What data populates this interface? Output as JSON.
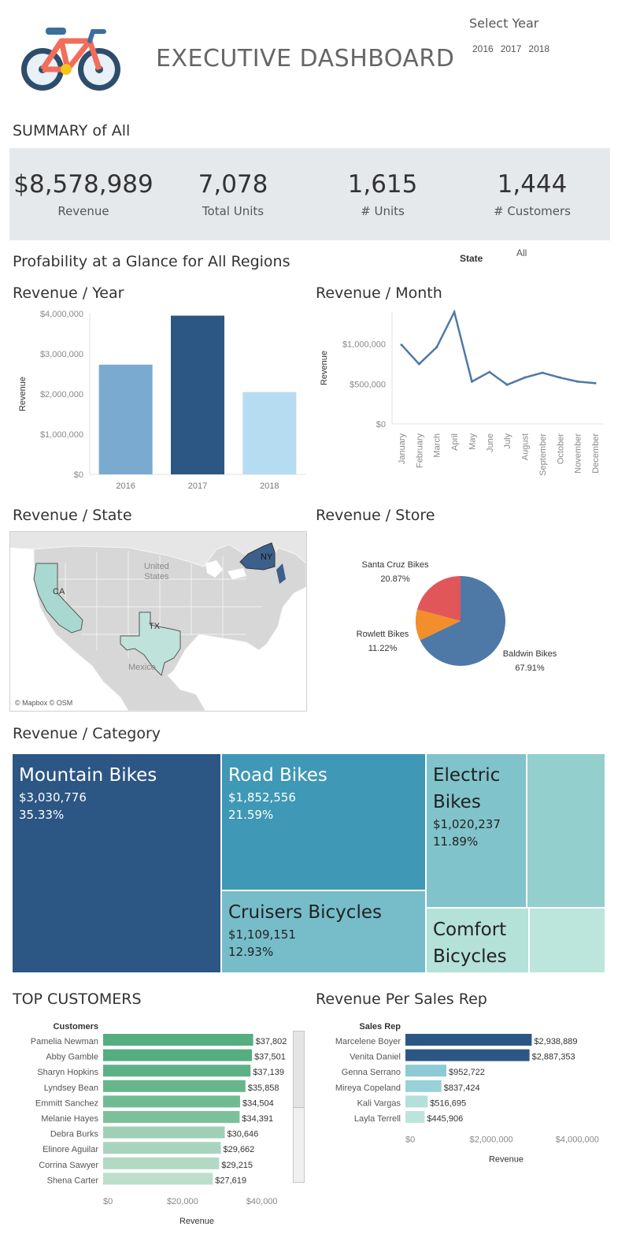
{
  "header": {
    "title": "EXECUTIVE DASHBOARD",
    "select_year_label": "Select Year",
    "years": [
      "2016",
      "2017",
      "2018"
    ]
  },
  "summary": {
    "title": "SUMMARY of All",
    "kpis": [
      {
        "value": "$8,578,989",
        "label": "Revenue"
      },
      {
        "value": "7,078",
        "label": "Total Units"
      },
      {
        "value": "1,615",
        "label": "# Units"
      },
      {
        "value": "1,444",
        "label": "# Customers"
      }
    ]
  },
  "profitability": {
    "title": "Profability at a Glance for All Regions",
    "state_label": "State",
    "state_value": "All"
  },
  "revenue_year": {
    "title": "Revenue / Year"
  },
  "revenue_month": {
    "title": "Revenue / Month"
  },
  "revenue_state": {
    "title": "Revenue / State",
    "map_labels": {
      "country_us": "United\nStates",
      "country_mx": "Mexico",
      "ca": "CA",
      "tx": "TX",
      "ny": "NY"
    },
    "attribution": "© Mapbox © OSM"
  },
  "revenue_store": {
    "title": "Revenue / Store"
  },
  "revenue_category": {
    "title": "Revenue / Category",
    "cells": [
      {
        "name": "Mountain Bikes",
        "value": "$3,030,776",
        "pct": "35.33%"
      },
      {
        "name": "Road Bikes",
        "value": "$1,852,556",
        "pct": "21.59%"
      },
      {
        "name": "Electric Bikes",
        "value": "$1,020,237",
        "pct": "11.89%"
      },
      {
        "name": "Cruisers Bicycles",
        "value": "$1,109,151",
        "pct": "12.93%"
      },
      {
        "name": "Comfort Bicycles",
        "value": "",
        "pct": ""
      }
    ]
  },
  "top_customers": {
    "title": "TOP CUSTOMERS"
  },
  "sales_rep": {
    "title": "Revenue Per Sales Rep"
  },
  "colors": {
    "dark_blue": "#2c5684",
    "mid_blue": "#7aaad0",
    "light_blue": "#b6dcf1",
    "line": "#4e79a7",
    "green": "#59a97f"
  },
  "chart_data": [
    {
      "type": "bar",
      "title": "Revenue / Year",
      "categories": [
        "2016",
        "2017",
        "2018"
      ],
      "values": [
        2730000,
        3950000,
        2050000
      ],
      "ylabel": "Revenue",
      "ylim": [
        0,
        4000000
      ],
      "yticks": [
        "$0",
        "$1,000,000",
        "$2,000,000",
        "$3,000,000",
        "$4,000,000"
      ],
      "colors": [
        "#7aaad0",
        "#2c5684",
        "#b6dcf1"
      ]
    },
    {
      "type": "line",
      "title": "Revenue / Month",
      "categories": [
        "January",
        "February",
        "March",
        "April",
        "May",
        "June",
        "July",
        "August",
        "September",
        "October",
        "November",
        "December"
      ],
      "values": [
        990000,
        750000,
        960000,
        1400000,
        530000,
        650000,
        490000,
        580000,
        640000,
        580000,
        530000,
        510000
      ],
      "ylabel": "Revenue",
      "ylim": [
        0,
        1400000
      ],
      "yticks": [
        "$0",
        "$500,000",
        "$1,000,000"
      ]
    },
    {
      "type": "pie",
      "title": "Revenue / Store",
      "labels": [
        "Baldwin Bikes",
        "Rowlett Bikes",
        "Santa Cruz Bikes"
      ],
      "values": [
        67.91,
        11.22,
        20.87
      ],
      "pct_labels": [
        "67.91%",
        "11.22%",
        "20.87%"
      ],
      "colors": [
        "#4e79a7",
        "#f28e2b",
        "#e15759"
      ]
    },
    {
      "type": "bar",
      "title": "TOP CUSTOMERS",
      "orientation": "horizontal",
      "header": "Customers",
      "categories": [
        "Pamelia Newman",
        "Abby Gamble",
        "Sharyn Hopkins",
        "Lyndsey Bean",
        "Emmitt Sanchez",
        "Melanie Hayes",
        "Debra Burks",
        "Elinore Aguilar",
        "Corrina Sawyer",
        "Shena Carter"
      ],
      "values": [
        37802,
        37501,
        37139,
        35858,
        34504,
        34391,
        30646,
        29662,
        29215,
        27619
      ],
      "value_labels": [
        "$37,802",
        "$37,501",
        "$37,139",
        "$35,858",
        "$34,504",
        "$34,391",
        "$30,646",
        "$29,662",
        "$29,215",
        "$27,619"
      ],
      "xlabel": "Revenue",
      "xlim": [
        0,
        48000
      ],
      "xticks": [
        "$0",
        "$20,000",
        "$40,000"
      ]
    },
    {
      "type": "bar",
      "title": "Revenue Per Sales Rep",
      "orientation": "horizontal",
      "header": "Sales Rep",
      "categories": [
        "Marcelene Boyer",
        "Venita Daniel",
        "Genna Serrano",
        "Mireya Copeland",
        "Kali Vargas",
        "Layla Terrell"
      ],
      "values": [
        2938889,
        2887353,
        952722,
        837424,
        516695,
        445906
      ],
      "value_labels": [
        "$2,938,889",
        "$2,887,353",
        "$952,722",
        "$837,424",
        "$516,695",
        "$445,906"
      ],
      "xlabel": "Revenue",
      "xlim": [
        0,
        4800000
      ],
      "xticks": [
        "$0",
        "$2,000,000",
        "$4,000,000"
      ]
    }
  ]
}
